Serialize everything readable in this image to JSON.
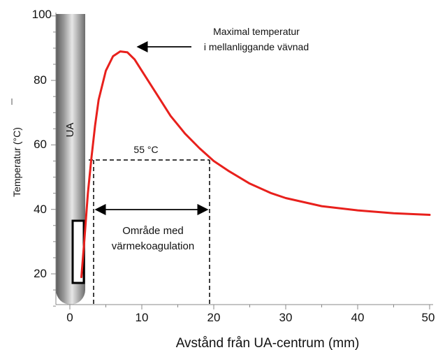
{
  "chart_data": {
    "type": "line",
    "xlabel": "Avstånd från UA-centrum (mm)",
    "ylabel": "Temperatur (°C)",
    "xlim": [
      -2,
      50
    ],
    "ylim": [
      10,
      100
    ],
    "x_ticks": [
      "0",
      "10",
      "20",
      "30",
      "40",
      "50"
    ],
    "y_ticks": [
      "20",
      "40",
      "60",
      "80",
      "100"
    ],
    "grid": false,
    "series": [
      {
        "color": "#e8201c",
        "x": [
          1.6,
          2.0,
          2.5,
          3.0,
          3.5,
          4.0,
          5.0,
          6.0,
          7.0,
          8.0,
          9.0,
          10.0,
          12.0,
          14.0,
          16.0,
          18.0,
          20.0,
          22.0,
          25.0,
          28.0,
          30.0,
          35.0,
          40.0,
          45.0,
          48.0,
          50.0
        ],
        "y": [
          19,
          30,
          45,
          56,
          66,
          74,
          83,
          87.5,
          89,
          88.7,
          86.5,
          83,
          76,
          69,
          63.5,
          59,
          55,
          52,
          48,
          45,
          43.5,
          41,
          39.7,
          38.8,
          38.5,
          38.3
        ]
      }
    ],
    "probe_label": "UA",
    "annotations": [
      {
        "id": "max",
        "lines": [
          "Maximal temperatur",
          "i mellanliggande vävnad"
        ]
      },
      {
        "id": "threshold",
        "text": "55 °C",
        "value": 55
      },
      {
        "id": "zone",
        "lines": [
          "Område med",
          "värmekoagulation"
        ],
        "x_range": [
          3.3,
          19.5
        ]
      }
    ]
  }
}
